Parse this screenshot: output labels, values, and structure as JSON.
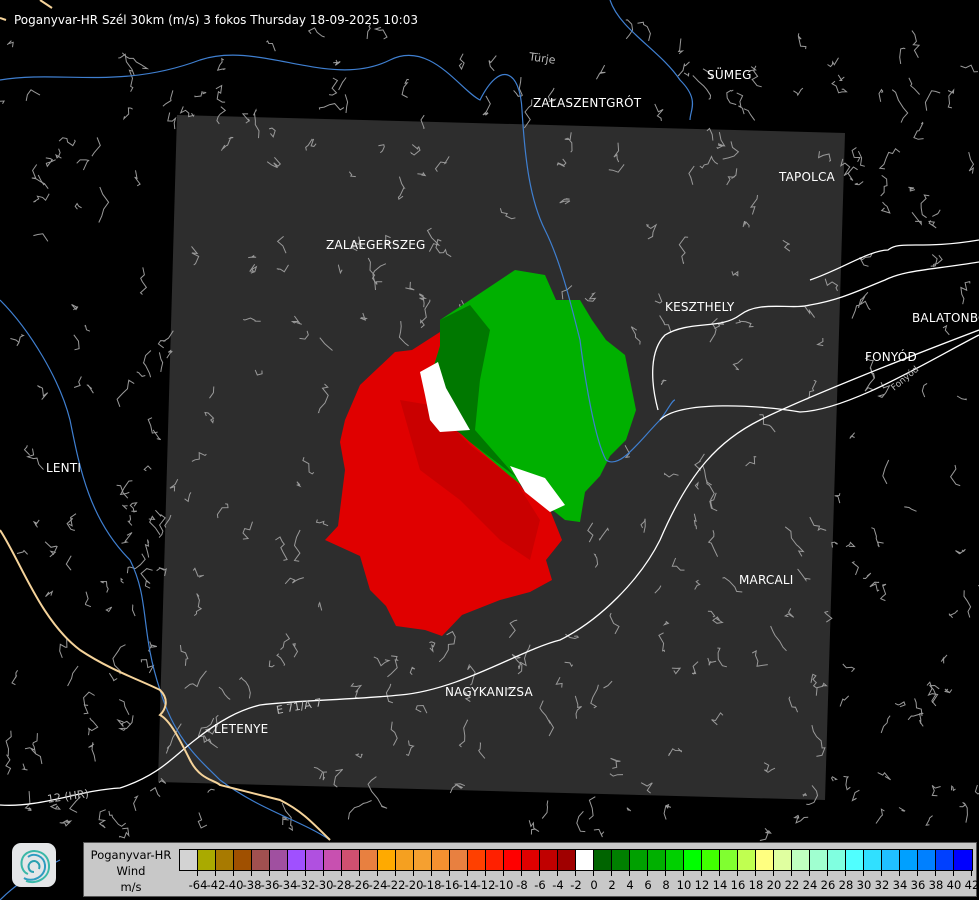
{
  "header": {
    "title": "Poganyvar-HR Szél 30km (m/s) 3 fokos Thursday 18-09-2025 10:03"
  },
  "map": {
    "cities": [
      "ZALASZENTGRÓT",
      "SÜMEG",
      "TAPOLCA",
      "ZALAEGERSZEG",
      "KESZTHELY",
      "BALATONBO",
      "FONYÓD",
      "LENTI",
      "MARCALI",
      "NAGYKANIZSA",
      "LETENYE"
    ],
    "labels": {
      "turje": "Türje",
      "e71": "E 71/A 7",
      "hr12": "12 (HR)",
      "fonyod_small": "Fonyód"
    },
    "colors": {
      "background": "#000000",
      "radar_area": "#2d2d2d",
      "rivers": "#3f7fd0",
      "roads": "#ffffff",
      "border": "#f5d39a",
      "outlines": "#9a9a9a",
      "approaching": "#00b000",
      "receding": "#e00000"
    }
  },
  "legend": {
    "radar": "Poganyvar-HR",
    "quantity": "Wind",
    "unit": "m/s",
    "ticks": [
      "-64",
      "-42",
      "-40",
      "-38",
      "-36",
      "-34",
      "-32",
      "-30",
      "-28",
      "-26",
      "-24",
      "-22",
      "-20",
      "-18",
      "-16",
      "-14",
      "-12",
      "-10",
      "-8",
      "-6",
      "-4",
      "-2",
      "0",
      "2",
      "4",
      "6",
      "8",
      "10",
      "12",
      "14",
      "16",
      "18",
      "20",
      "22",
      "24",
      "26",
      "28",
      "30",
      "32",
      "34",
      "36",
      "38",
      "40",
      "42"
    ],
    "colors": [
      "#d3d3d3",
      "#aaaa00",
      "#a87a00",
      "#a05000",
      "#a05050",
      "#a050a0",
      "#a050ff",
      "#b050e0",
      "#c850b0",
      "#d05070",
      "#e88040",
      "#ffaa00",
      "#f5a020",
      "#f5a030",
      "#f59030",
      "#e88040",
      "#ff4000",
      "#ff2000",
      "#ff0000",
      "#e00000",
      "#c00000",
      "#a00000",
      "#ffffff",
      "#006400",
      "#008000",
      "#00a000",
      "#00b000",
      "#00d000",
      "#00ff00",
      "#40ff00",
      "#80ff30",
      "#c0ff50",
      "#ffff80",
      "#e0ffa0",
      "#c0ffc0",
      "#a0ffd0",
      "#80ffe0",
      "#50ffff",
      "#30e0ff",
      "#20c0ff",
      "#00a0ff",
      "#0080ff",
      "#0040ff",
      "#0000ff"
    ]
  }
}
